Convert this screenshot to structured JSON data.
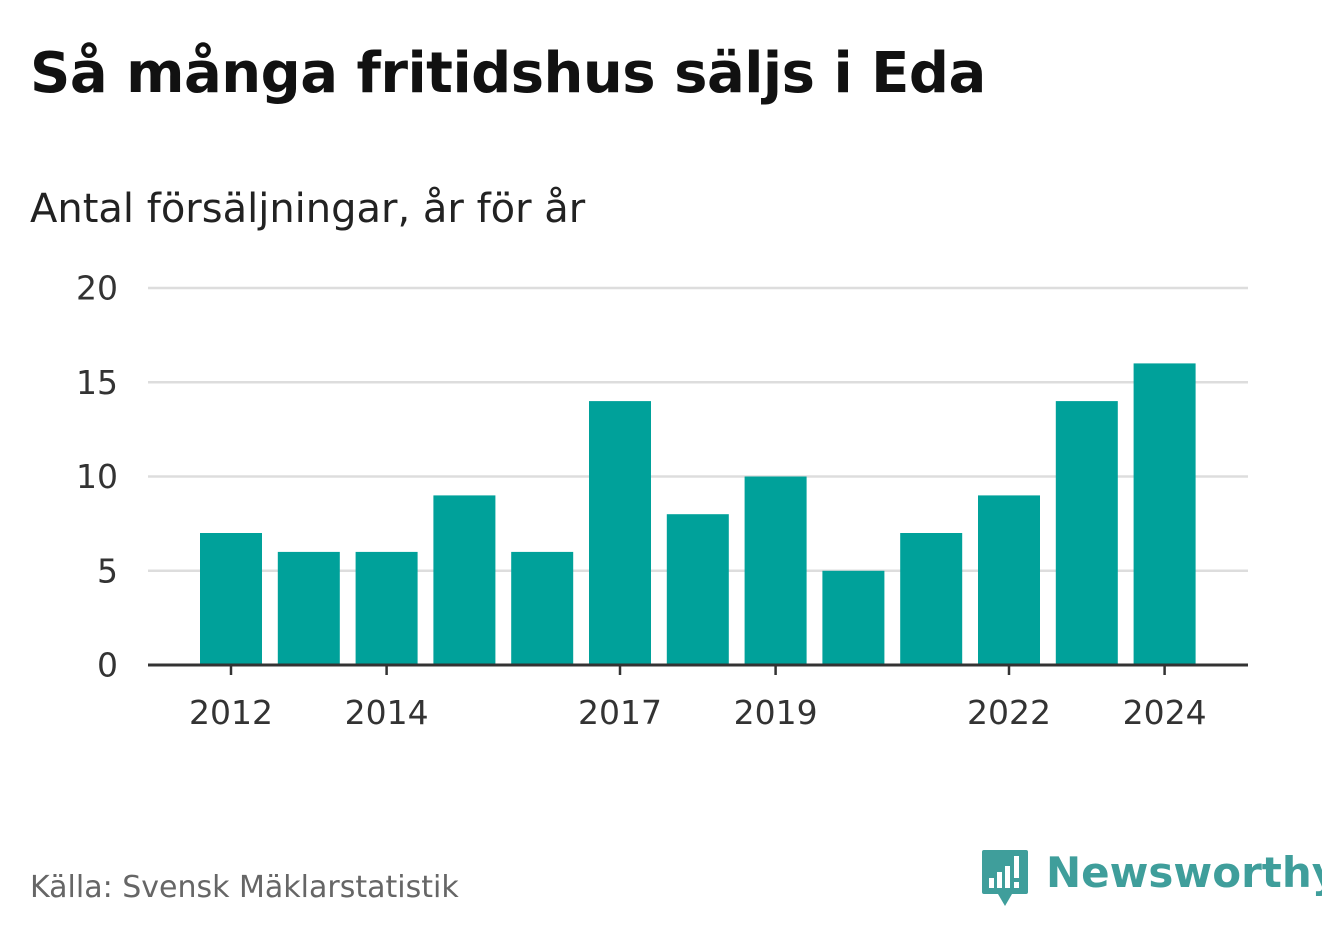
{
  "title": "Så många fritidshus säljs i Eda",
  "subtitle": "Antal försäljningar, år för år",
  "source": "Källa: Svensk Mäklarstatistik",
  "brand": {
    "name": "Newsworthy",
    "icon": "newsworthy-logo-icon",
    "color": "#3f9e9b"
  },
  "colors": {
    "bar": "#00a19a",
    "grid": "#dddddd",
    "axis": "#333333"
  },
  "chart_data": {
    "type": "bar",
    "title": "Så många fritidshus säljs i Eda",
    "subtitle": "Antal försäljningar, år för år",
    "categories": [
      "2012",
      "2013",
      "2014",
      "2015",
      "2016",
      "2017",
      "2018",
      "2019",
      "2020",
      "2021",
      "2022",
      "2023",
      "2024"
    ],
    "values": [
      7,
      6,
      6,
      9,
      6,
      14,
      8,
      10,
      5,
      7,
      9,
      14,
      16
    ],
    "x_tick_labels": [
      "2012",
      "2014",
      "2017",
      "2019",
      "2022",
      "2024"
    ],
    "y_ticks": [
      0,
      5,
      10,
      15,
      20
    ],
    "ylim": [
      0,
      20
    ],
    "xlabel": "",
    "ylabel": "",
    "grid": true
  }
}
